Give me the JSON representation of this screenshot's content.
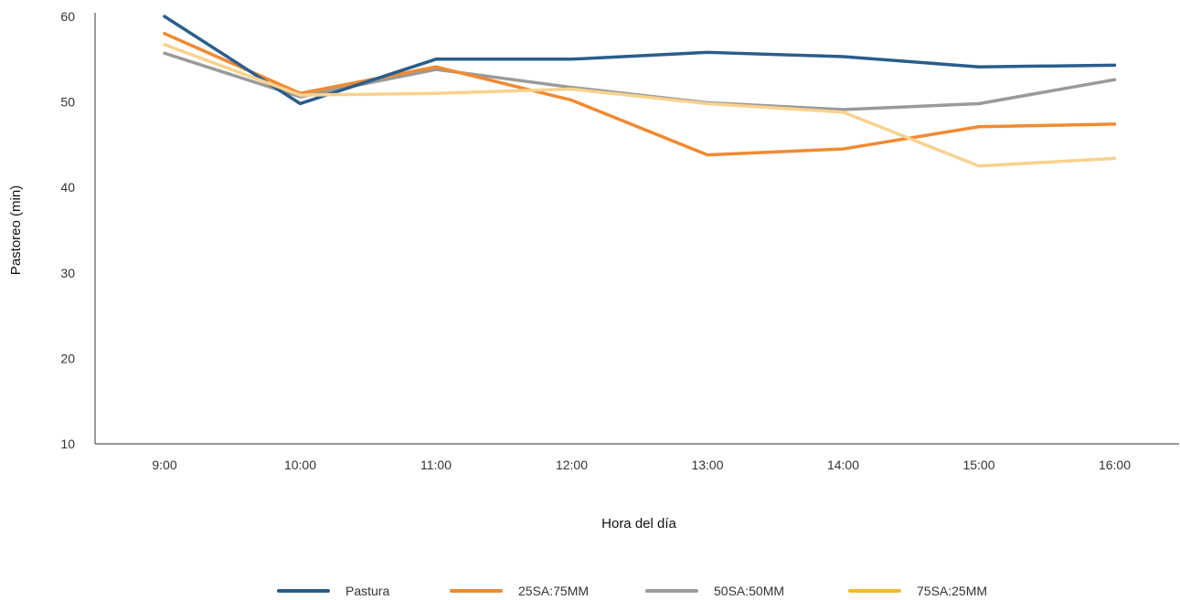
{
  "chart_data": {
    "type": "line",
    "title": "",
    "xlabel": "Hora del día",
    "ylabel": "Pastoreo (min)",
    "categories": [
      "9:00",
      "10:00",
      "11:00",
      "12:00",
      "13:00",
      "14:00",
      "15:00",
      "16:00"
    ],
    "ylim": [
      10,
      60
    ],
    "yticks": [
      10,
      20,
      30,
      40,
      50,
      60
    ],
    "grid": false,
    "legend_position": "bottom",
    "series": [
      {
        "name": "Pastura",
        "color": "#2a5d8c",
        "values": [
          60.0,
          49.8,
          55.0,
          55.0,
          55.8,
          55.3,
          54.1,
          54.3
        ]
      },
      {
        "name": "25SA:75MM",
        "color": "#f08a32",
        "values": [
          58.0,
          51.0,
          54.1,
          50.2,
          43.8,
          44.5,
          47.1,
          47.4
        ]
      },
      {
        "name": "50SA:50MM",
        "color": "#9a9a9a",
        "values": [
          55.7,
          50.6,
          53.8,
          51.7,
          49.9,
          49.1,
          49.8,
          52.6
        ]
      },
      {
        "name": "75SA:25MM",
        "color": "#f8d28e",
        "legend_color": "#f7b731",
        "values": [
          56.7,
          50.8,
          51.0,
          51.5,
          49.8,
          48.8,
          42.5,
          43.4
        ]
      }
    ]
  }
}
